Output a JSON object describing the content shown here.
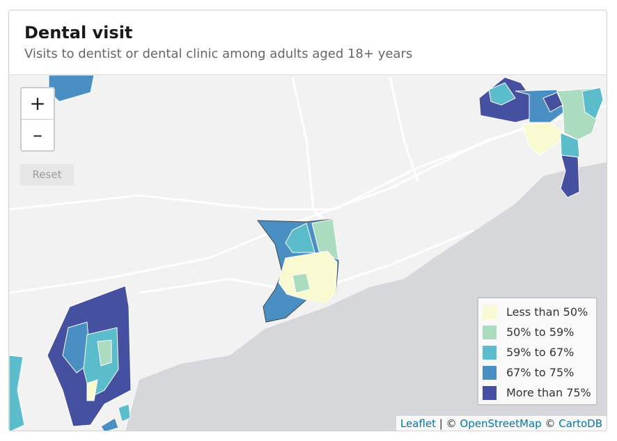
{
  "header": {
    "title": "Dental visit",
    "subtitle": "Visits to dentist or dental clinic among adults aged 18+ years"
  },
  "controls": {
    "zoom_in": "+",
    "zoom_out": "–",
    "reset": "Reset"
  },
  "legend": {
    "items": [
      {
        "label": "Less than 50%",
        "color": "#fafad2"
      },
      {
        "label": "50% to 59%",
        "color": "#abdcbf"
      },
      {
        "label": "59% to 67%",
        "color": "#5bbccb"
      },
      {
        "label": "67% to 75%",
        "color": "#4a8fc3"
      },
      {
        "label": "More than 75%",
        "color": "#4650a0"
      }
    ]
  },
  "attribution": [
    {
      "text": "Leaflet",
      "link": true
    },
    {
      "text": "| ©",
      "link": false
    },
    {
      "text": "OpenStreetMap",
      "link": true
    },
    {
      "text": "©",
      "link": false
    },
    {
      "text": "CartoDB",
      "link": true
    }
  ]
}
